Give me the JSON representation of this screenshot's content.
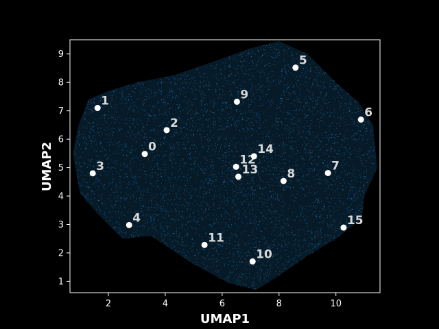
{
  "chart_data": {
    "type": "scatter",
    "title": "",
    "xlabel": "UMAP1",
    "ylabel": "UMAP2",
    "xlim": [
      0.65,
      11.55
    ],
    "ylim": [
      0.6,
      9.5
    ],
    "xticks": [
      2,
      4,
      6,
      8,
      10
    ],
    "yticks": [
      1,
      2,
      3,
      4,
      5,
      6,
      7,
      8,
      9
    ],
    "background_color": "#000000",
    "point_color": "#1f77b4",
    "centroid_color": "#ffffff",
    "label_color": "#d9d9d9",
    "centroids": [
      {
        "label": "0",
        "x": 3.28,
        "y": 5.48
      },
      {
        "label": "1",
        "x": 1.62,
        "y": 7.1
      },
      {
        "label": "2",
        "x": 4.05,
        "y": 6.32
      },
      {
        "label": "3",
        "x": 1.45,
        "y": 4.8
      },
      {
        "label": "4",
        "x": 2.73,
        "y": 2.98
      },
      {
        "label": "5",
        "x": 8.58,
        "y": 8.52
      },
      {
        "label": "6",
        "x": 10.88,
        "y": 6.69
      },
      {
        "label": "7",
        "x": 9.72,
        "y": 4.81
      },
      {
        "label": "8",
        "x": 8.16,
        "y": 4.53
      },
      {
        "label": "9",
        "x": 6.52,
        "y": 7.32
      },
      {
        "label": "10",
        "x": 7.07,
        "y": 1.7
      },
      {
        "label": "11",
        "x": 5.38,
        "y": 2.28
      },
      {
        "label": "12",
        "x": 6.49,
        "y": 5.03
      },
      {
        "label": "13",
        "x": 6.57,
        "y": 4.68
      },
      {
        "label": "14",
        "x": 7.12,
        "y": 5.4
      },
      {
        "label": "15",
        "x": 10.27,
        "y": 2.89
      }
    ],
    "cloud_outline": [
      [
        0.75,
        5.5
      ],
      [
        0.95,
        6.5
      ],
      [
        1.3,
        7.4
      ],
      [
        2.0,
        7.7
      ],
      [
        3.0,
        8.0
      ],
      [
        4.3,
        8.25
      ],
      [
        5.6,
        8.7
      ],
      [
        7.0,
        9.2
      ],
      [
        8.0,
        9.45
      ],
      [
        9.0,
        9.0
      ],
      [
        10.0,
        8.0
      ],
      [
        10.8,
        7.3
      ],
      [
        11.3,
        6.5
      ],
      [
        11.45,
        5.0
      ],
      [
        11.0,
        4.0
      ],
      [
        10.9,
        3.2
      ],
      [
        10.0,
        2.5
      ],
      [
        9.0,
        1.9
      ],
      [
        8.0,
        1.2
      ],
      [
        7.2,
        0.7
      ],
      [
        6.2,
        0.95
      ],
      [
        5.0,
        1.6
      ],
      [
        3.5,
        2.6
      ],
      [
        2.5,
        2.5
      ],
      [
        1.6,
        3.4
      ],
      [
        1.0,
        4.1
      ]
    ]
  }
}
